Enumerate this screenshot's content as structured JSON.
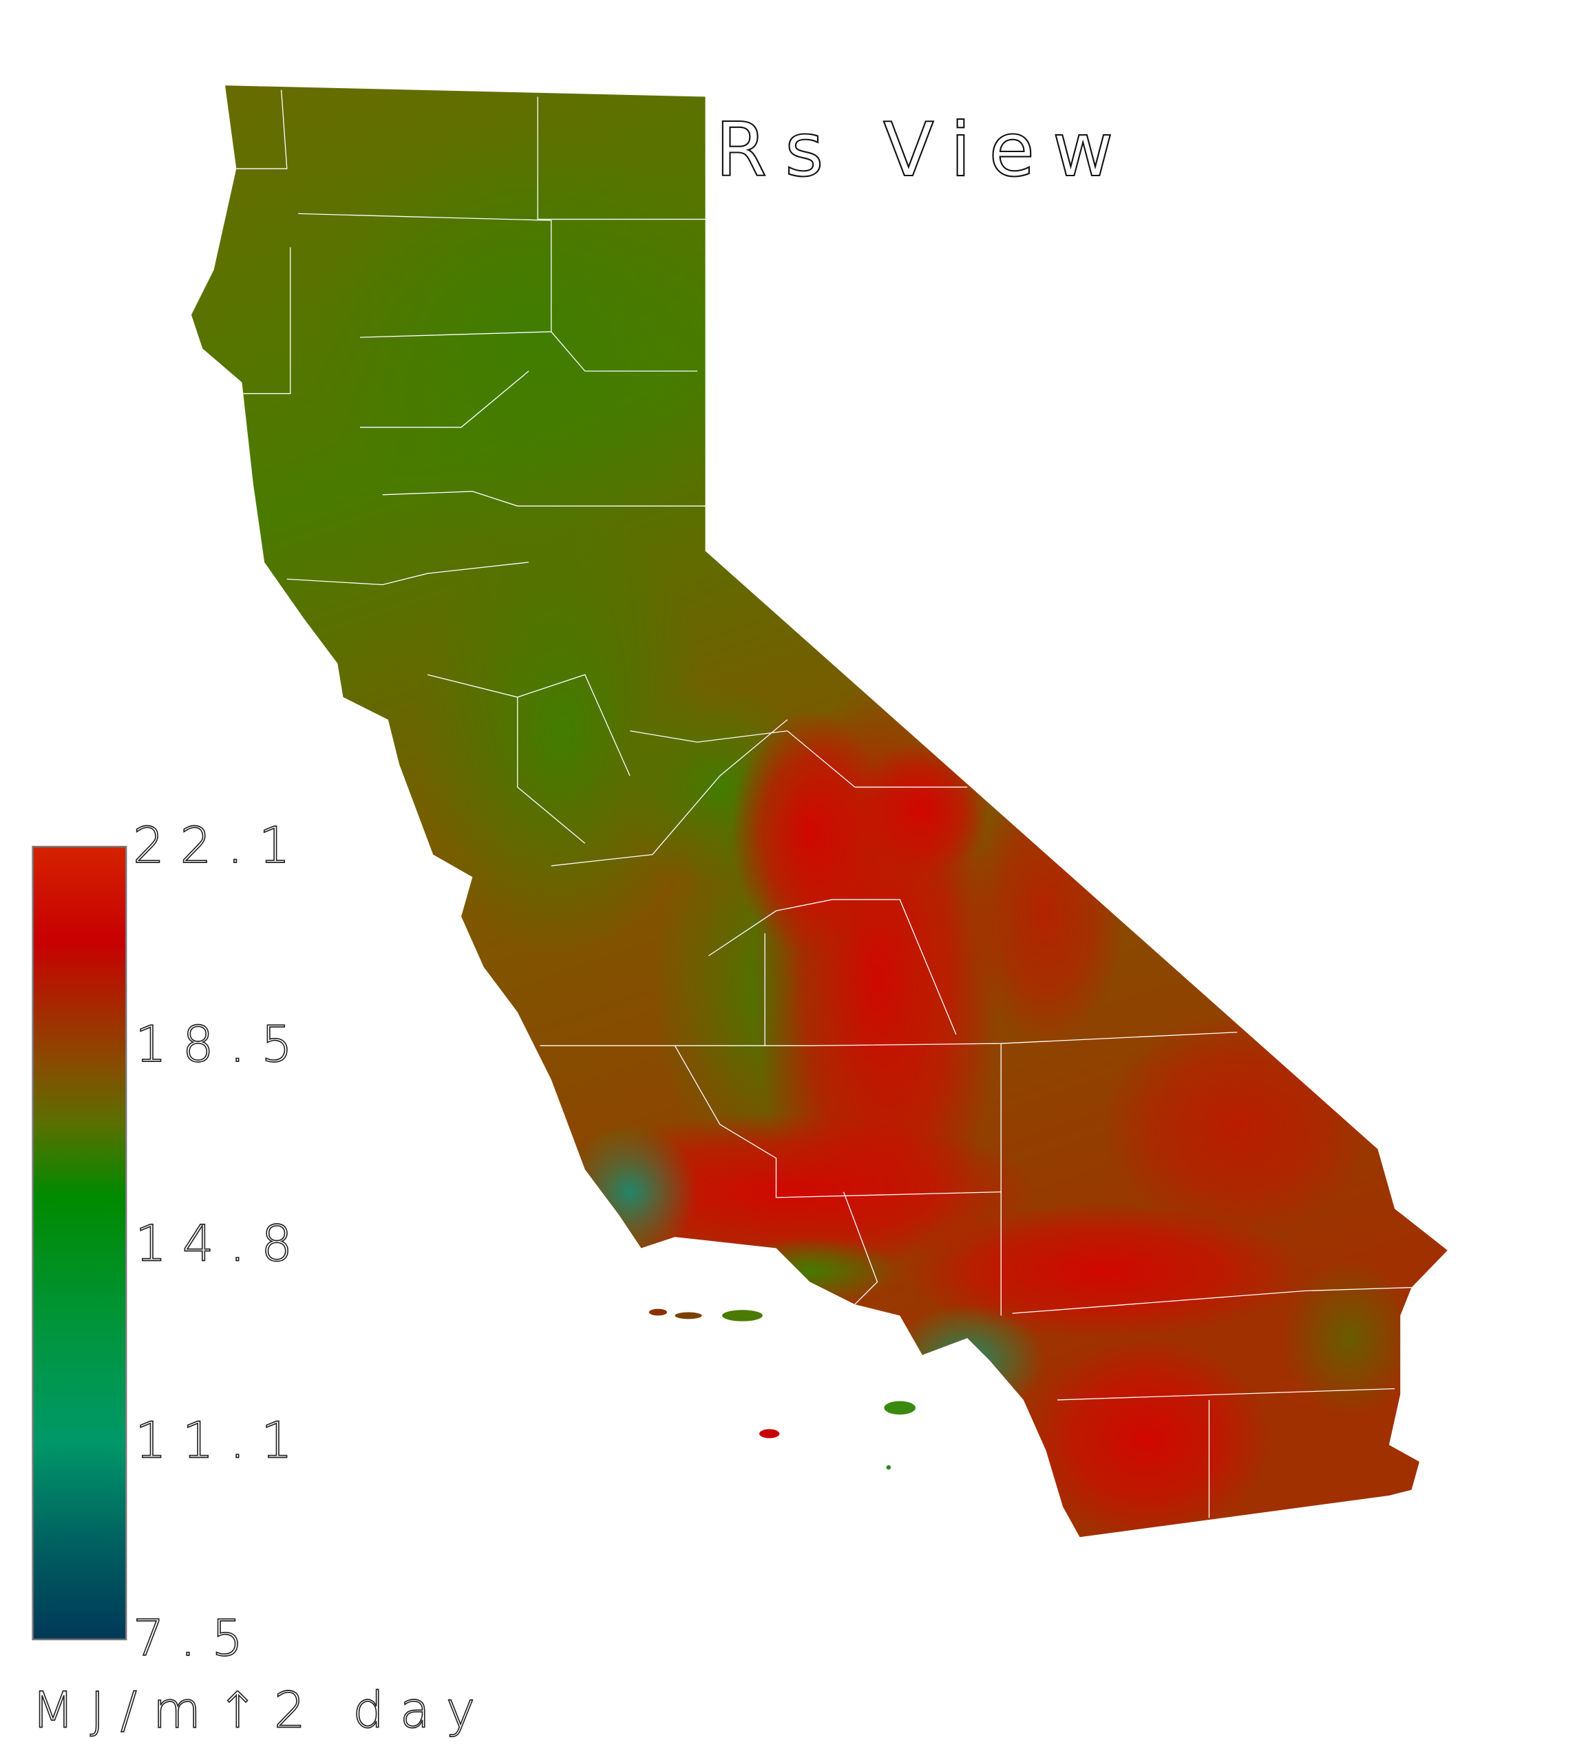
{
  "title": "Rs View",
  "colorbar": {
    "unit": "MJ/m↑2 day",
    "ticks": [
      "22.1",
      "18.5",
      "14.8",
      "11.1",
      "7.5"
    ],
    "range": [
      7.5,
      22.1
    ],
    "colors": {
      "22.1": "#d42200",
      "20.3": "#c80000",
      "18.5": "#7a6000",
      "14.8": "#008a00",
      "11.1": "#009868",
      "7.5": "#003858"
    }
  },
  "map": {
    "region": "California",
    "boundaries": "county lines",
    "boundary_color": "#ffffff"
  }
}
